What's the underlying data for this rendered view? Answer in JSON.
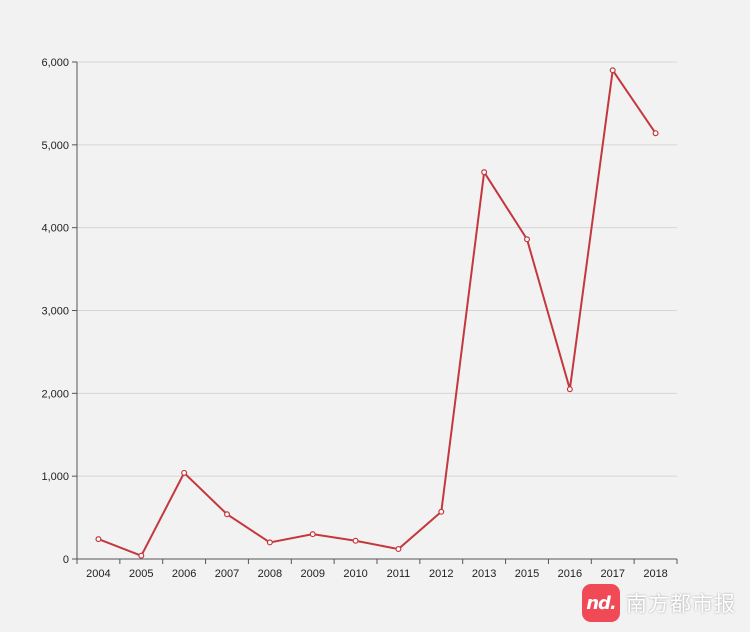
{
  "chart_data": {
    "type": "line",
    "title": "",
    "xlabel": "",
    "ylabel": "",
    "categories": [
      "2004",
      "2005",
      "2006",
      "2007",
      "2008",
      "2009",
      "2010",
      "2011",
      "2012",
      "2013",
      "2015",
      "2016",
      "2017",
      "2018"
    ],
    "series": [
      {
        "values": [
          240,
          40,
          1040,
          540,
          200,
          300,
          220,
          120,
          570,
          4670,
          3860,
          2050,
          5900,
          5140
        ],
        "color": "#c4383d"
      }
    ],
    "ylim": [
      0,
      6000
    ],
    "yticks": [
      0,
      1000,
      2000,
      3000,
      4000,
      5000,
      6000
    ],
    "ytick_labels": [
      "0",
      "1,000",
      "2,000",
      "3,000",
      "4,000",
      "5,000",
      "6,000"
    ],
    "grid": true,
    "legend": "none"
  },
  "watermark": {
    "logo_text": "nd.",
    "brand_text": "南方都市报",
    "logo_color": "#f04a56"
  }
}
